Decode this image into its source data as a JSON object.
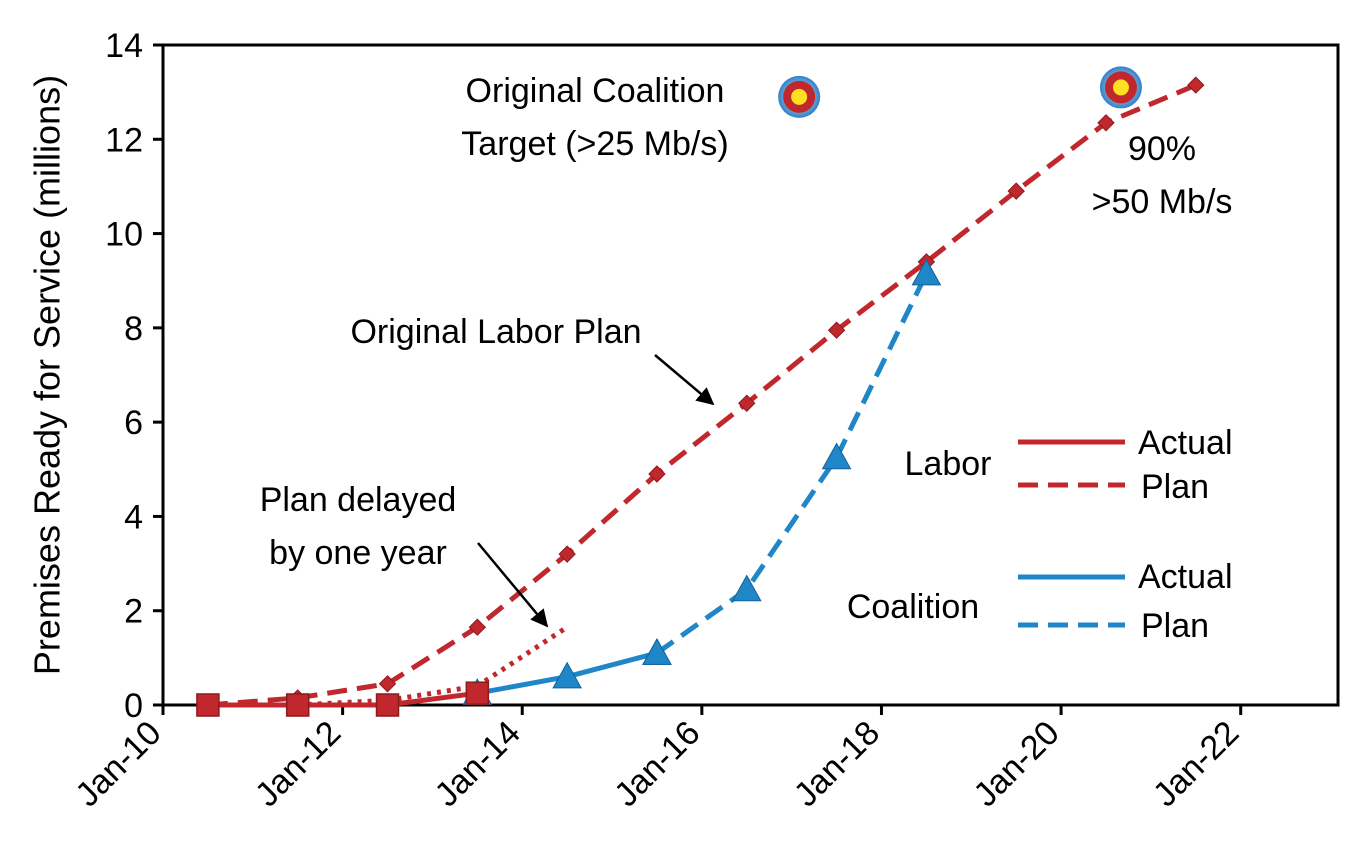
{
  "chart_data": {
    "type": "line",
    "title": "",
    "xlabel": "",
    "ylabel": "Premises Ready for Service (millions)",
    "x_ticks": [
      "Jan-10",
      "Jan-12",
      "Jan-14",
      "Jan-16",
      "Jan-18",
      "Jan-20",
      "Jan-22"
    ],
    "xlim": [
      "2010-01",
      "2023-02"
    ],
    "ylim": [
      0,
      14
    ],
    "y_ticks": [
      0,
      2,
      4,
      6,
      8,
      10,
      12,
      14
    ],
    "grid": false,
    "series": [
      {
        "group": "Labor",
        "kind": "Plan",
        "color": "#c0282d",
        "style": "dashed",
        "marker": "diamond",
        "points": [
          [
            "2010-07",
            0
          ],
          [
            "2011-07",
            0.15
          ],
          [
            "2012-07",
            0.45
          ],
          [
            "2013-07",
            1.65
          ],
          [
            "2014-07",
            3.2
          ],
          [
            "2015-07",
            4.9
          ],
          [
            "2016-07",
            6.4
          ],
          [
            "2017-07",
            7.95
          ],
          [
            "2018-07",
            9.4
          ],
          [
            "2019-07",
            10.9
          ],
          [
            "2020-07",
            12.35
          ],
          [
            "2021-07",
            13.15
          ]
        ]
      },
      {
        "group": "Labor",
        "kind": "Actual",
        "color": "#c0282d",
        "style": "solid",
        "marker": "square",
        "points": [
          [
            "2010-07",
            0
          ],
          [
            "2011-07",
            0
          ],
          [
            "2012-07",
            0
          ],
          [
            "2013-07",
            0.25
          ]
        ]
      },
      {
        "group": "Labor",
        "kind": "Plan delayed",
        "color": "#c0282d",
        "style": "dotted",
        "marker": "none",
        "points": [
          [
            "2011-07",
            0
          ],
          [
            "2012-07",
            0.1
          ],
          [
            "2013-07",
            0.4
          ],
          [
            "2014-07",
            1.65
          ]
        ]
      },
      {
        "group": "Coalition",
        "kind": "Actual",
        "color": "#1f86c8",
        "style": "solid",
        "marker": "triangle",
        "points": [
          [
            "2013-07",
            0.25
          ],
          [
            "2014-07",
            0.6
          ],
          [
            "2015-07",
            1.1
          ]
        ]
      },
      {
        "group": "Coalition",
        "kind": "Plan",
        "color": "#1f86c8",
        "style": "dashed",
        "marker": "triangle",
        "points": [
          [
            "2015-07",
            1.1
          ],
          [
            "2016-07",
            2.45
          ],
          [
            "2017-07",
            5.25
          ],
          [
            "2018-07",
            9.15
          ]
        ]
      }
    ],
    "targets": [
      {
        "label": "Original Coalition Target (>25 Mb/s)",
        "x": "2017-02",
        "y": 12.9
      },
      {
        "label": "90% >50 Mb/s",
        "x": "2020-09",
        "y": 13.1
      }
    ],
    "annotations": {
      "coalition_target_line1": "Original Coalition",
      "coalition_target_line2": "Target (>25 Mb/s)",
      "labor_plan": "Original Labor Plan",
      "delayed_line1": "Plan delayed",
      "delayed_line2": "by one year",
      "target_90_line1": "90%",
      "target_90_line2": ">50 Mb/s"
    },
    "legend": {
      "placement": "right",
      "groups": [
        {
          "name": "Labor",
          "entries": [
            "Actual",
            "Plan"
          ],
          "color": "#c0282d"
        },
        {
          "name": "Coalition",
          "entries": [
            "Actual",
            "Plan"
          ],
          "color": "#1f86c8"
        }
      ]
    }
  }
}
